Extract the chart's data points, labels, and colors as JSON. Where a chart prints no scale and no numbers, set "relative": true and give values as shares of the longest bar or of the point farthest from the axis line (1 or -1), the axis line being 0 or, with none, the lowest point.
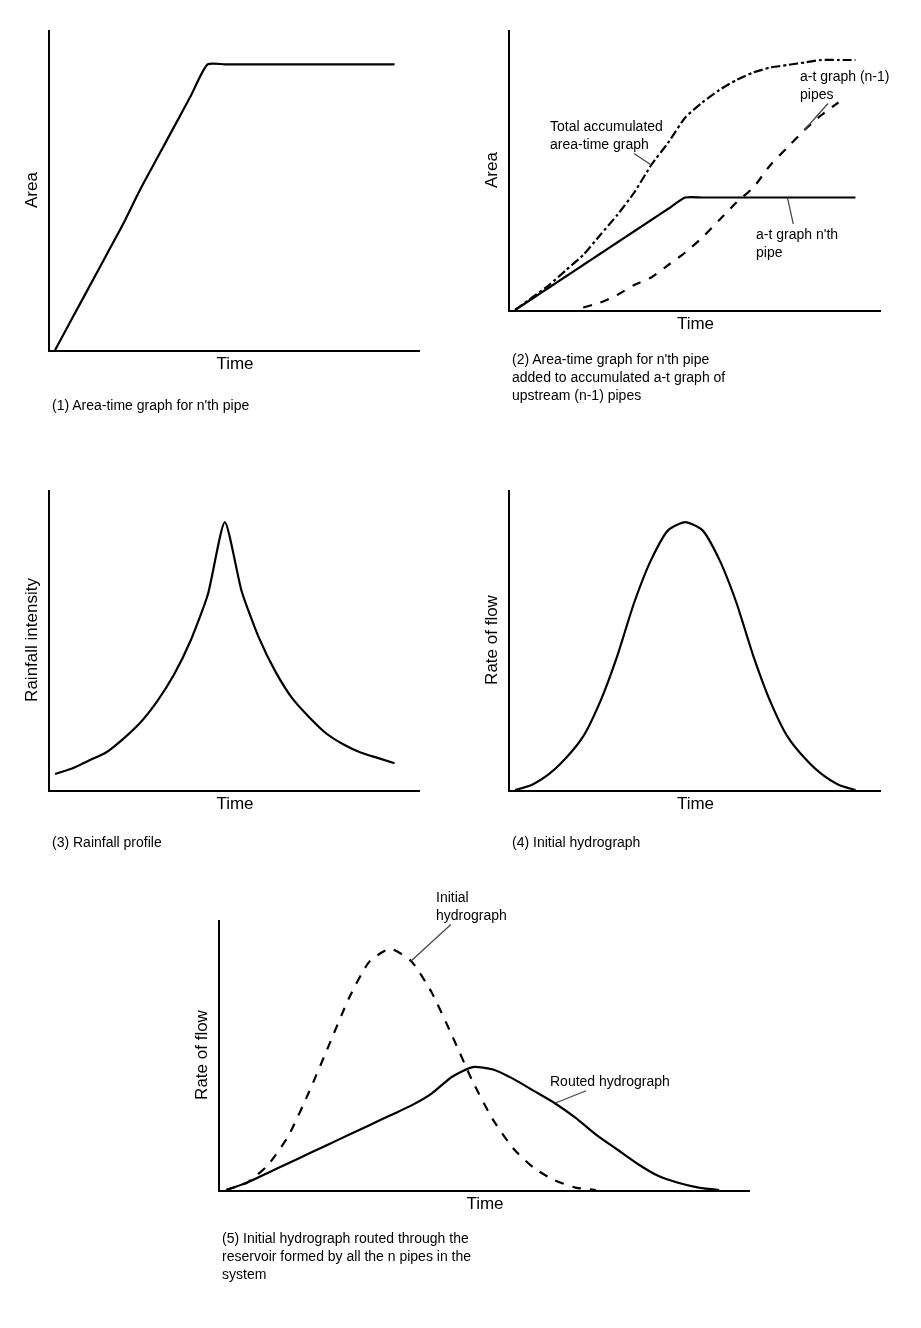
{
  "chart_data": [
    {
      "type": "line",
      "relative": true,
      "xlabel": "Time",
      "ylabel": "Area",
      "categories": [
        null,
        null,
        null,
        null,
        null,
        null,
        null,
        null,
        null,
        null,
        null,
        null,
        null,
        null,
        null,
        null,
        null,
        null,
        null,
        null,
        null
      ],
      "series": [
        {
          "color": "#000000",
          "line_style": "solid",
          "values": [
            0,
            0.11,
            0.22,
            0.33,
            0.44,
            0.56,
            0.67,
            0.78,
            0.89,
            1,
            1,
            1,
            1,
            1,
            1,
            1,
            1,
            1,
            1,
            1,
            1
          ]
        }
      ],
      "annotations": [
        "(1) Area-time graph for n'th pipe"
      ]
    },
    {
      "type": "line",
      "relative": true,
      "xlabel": "Time",
      "ylabel": "Area",
      "categories": [
        null,
        null,
        null,
        null,
        null,
        null,
        null,
        null,
        null,
        null,
        null,
        null,
        null,
        null,
        null,
        null,
        null,
        null,
        null,
        null,
        null
      ],
      "series": [
        {
          "name": "Total accumulated area-time graph",
          "color": "#000000",
          "line_style": "dashdot",
          "values": [
            0,
            0.05,
            0.1,
            0.16,
            0.22,
            0.3,
            0.38,
            0.47,
            0.58,
            0.67,
            0.77,
            0.83,
            0.88,
            0.92,
            0.95,
            0.97,
            0.98,
            0.99,
            1,
            1,
            1
          ]
        },
        {
          "name": "a-t graph (n-1) pipes",
          "color": "#000000",
          "line_style": "dashed",
          "values": [
            null,
            null,
            null,
            null,
            0.01,
            0.03,
            0.06,
            0.1,
            0.13,
            0.18,
            0.23,
            0.29,
            0.36,
            0.43,
            0.49,
            0.58,
            0.65,
            0.72,
            0.78,
            0.83,
            null
          ]
        },
        {
          "name": "a-t graph n'th pipe",
          "color": "#000000",
          "line_style": "solid",
          "values": [
            0,
            0.045,
            0.09,
            0.135,
            0.18,
            0.225,
            0.27,
            0.315,
            0.36,
            0.405,
            0.45,
            0.45,
            0.45,
            0.45,
            0.45,
            0.45,
            0.45,
            0.45,
            0.45,
            0.45,
            0.45
          ]
        }
      ],
      "annotations": [
        "(2) Area-time graph for n'th pipe added to accumulated a-t graph of upstream (n-1) pipes"
      ]
    },
    {
      "type": "line",
      "relative": true,
      "xlabel": "Time",
      "ylabel": "Rainfall intensity",
      "categories": [
        null,
        null,
        null,
        null,
        null,
        null,
        null,
        null,
        null,
        null,
        null,
        null,
        null,
        null,
        null,
        null,
        null,
        null,
        null,
        null,
        null
      ],
      "series": [
        {
          "color": "#000000",
          "line_style": "solid",
          "values": [
            0.06,
            0.08,
            0.11,
            0.14,
            0.19,
            0.25,
            0.33,
            0.43,
            0.56,
            0.73,
            1,
            0.74,
            0.57,
            0.44,
            0.34,
            0.27,
            0.21,
            0.17,
            0.14,
            0.12,
            0.1
          ]
        }
      ],
      "annotations": [
        "(3) Rainfall profile"
      ]
    },
    {
      "type": "line",
      "relative": true,
      "xlabel": "Time",
      "ylabel": "Rate of flow",
      "categories": [
        null,
        null,
        null,
        null,
        null,
        null,
        null,
        null,
        null,
        null,
        null,
        null,
        null,
        null,
        null,
        null,
        null,
        null,
        null,
        null,
        null
      ],
      "series": [
        {
          "color": "#000000",
          "line_style": "solid",
          "values": [
            0,
            0.02,
            0.06,
            0.12,
            0.2,
            0.33,
            0.5,
            0.7,
            0.86,
            0.97,
            1,
            0.97,
            0.86,
            0.7,
            0.5,
            0.33,
            0.2,
            0.12,
            0.06,
            0.02,
            0
          ]
        }
      ],
      "annotations": [
        "(4) Initial hydrograph"
      ]
    },
    {
      "type": "line",
      "relative": true,
      "xlabel": "Time",
      "ylabel": "Rate of flow",
      "categories": [
        null,
        null,
        null,
        null,
        null,
        null,
        null,
        null,
        null,
        null,
        null,
        null,
        null,
        null,
        null,
        null,
        null,
        null,
        null,
        null,
        null,
        null,
        null,
        null,
        null
      ],
      "series": [
        {
          "name": "Initial hydrograph",
          "color": "#000000",
          "line_style": "dashed",
          "values": [
            0,
            0.03,
            0.1,
            0.22,
            0.4,
            0.6,
            0.8,
            0.95,
            1,
            0.95,
            0.82,
            0.64,
            0.45,
            0.29,
            0.17,
            0.09,
            0.04,
            0.01,
            0,
            null,
            null,
            null,
            null,
            null,
            null
          ]
        },
        {
          "name": "Routed hydrograph",
          "color": "#000000",
          "line_style": "solid",
          "values": [
            0,
            0.03,
            0.07,
            0.11,
            0.15,
            0.19,
            0.23,
            0.27,
            0.31,
            0.35,
            0.4,
            0.47,
            0.51,
            0.5,
            0.46,
            0.41,
            0.36,
            0.3,
            0.23,
            0.17,
            0.11,
            0.06,
            0.03,
            0.01,
            0
          ]
        }
      ],
      "annotations": [
        "(5) Initial hydrograph routed through the reservoir formed by all the n pipes in the system"
      ]
    }
  ]
}
